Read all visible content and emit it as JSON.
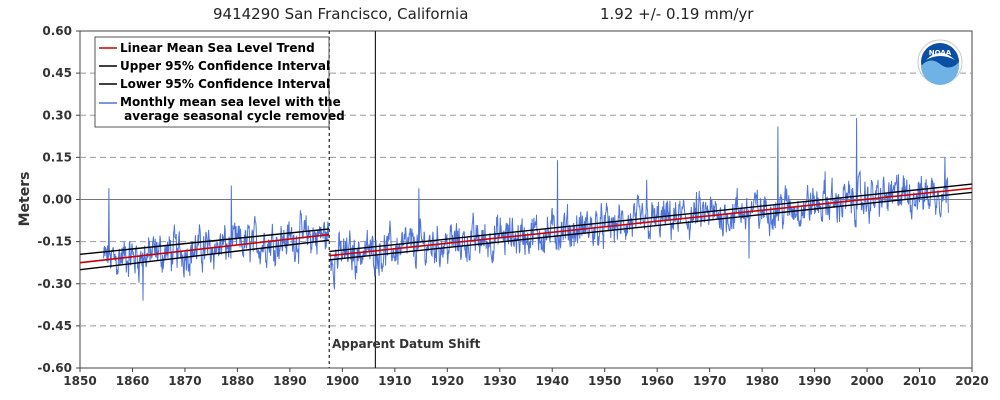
{
  "chart_data": {
    "type": "line",
    "title": "9414290 San Francisco, California",
    "trend_label": "1.92 +/-  0.19 mm/yr",
    "ylabel": "Meters",
    "xlabel": "",
    "xlim": [
      1850,
      2020
    ],
    "ylim": [
      -0.6,
      0.6
    ],
    "x_ticks": [
      "1850",
      "1860",
      "1870",
      "1880",
      "1890",
      "1900",
      "1910",
      "1920",
      "1930",
      "1940",
      "1950",
      "1960",
      "1970",
      "1980",
      "1990",
      "2000",
      "2010",
      "2020"
    ],
    "y_ticks": [
      "0.60",
      "0.45",
      "0.30",
      "0.15",
      "0.00",
      "-0.15",
      "-0.30",
      "-0.45",
      "-0.60"
    ],
    "grid": "horizontal dashed",
    "legend_position": "top-left",
    "legend": [
      {
        "label": "Linear Mean Sea Level Trend",
        "color": "#cc0000"
      },
      {
        "label": "Upper 95% Confidence Interval",
        "color": "#000000"
      },
      {
        "label": "Lower 95% Confidence Interval",
        "color": "#000000"
      },
      {
        "label": "Monthly mean sea level with the",
        "label2": " average seasonal cycle removed",
        "color": "#4f74d9"
      }
    ],
    "annotation": "Apparent Datum Shift",
    "datum_shift_year": 1897.5,
    "solid_marker_year": 1906.3,
    "monthly_series_extent": [
      1854.5,
      2015.5
    ],
    "series": [
      {
        "name": "Linear Mean Sea Level Trend",
        "color": "#cc0000",
        "segments": [
          {
            "x": [
              1850,
              1897.5
            ],
            "y": [
              -0.225,
              -0.125
            ]
          },
          {
            "x": [
              1897.5,
              2020
            ],
            "y": [
              -0.2,
              0.04
            ]
          }
        ]
      },
      {
        "name": "Upper 95% Confidence Interval",
        "color": "#000000",
        "segments": [
          {
            "x": [
              1850,
              1897.5
            ],
            "y": [
              -0.195,
              -0.105
            ]
          },
          {
            "x": [
              1897.5,
              2020
            ],
            "y": [
              -0.185,
              0.055
            ]
          }
        ]
      },
      {
        "name": "Lower 95% Confidence Interval",
        "color": "#000000",
        "segments": [
          {
            "x": [
              1850,
              1897.5
            ],
            "y": [
              -0.25,
              -0.145
            ]
          },
          {
            "x": [
              1897.5,
              2020
            ],
            "y": [
              -0.215,
              0.025
            ]
          }
        ]
      }
    ],
    "monthly_peaks": [
      {
        "x": 1855.5,
        "y": 0.04
      },
      {
        "x": 1862.0,
        "y": -0.36
      },
      {
        "x": 1878.8,
        "y": 0.05
      },
      {
        "x": 1898.5,
        "y": -0.32
      },
      {
        "x": 1914.6,
        "y": 0.04
      },
      {
        "x": 1941.0,
        "y": 0.14
      },
      {
        "x": 1958.0,
        "y": 0.07
      },
      {
        "x": 1977.5,
        "y": -0.21
      },
      {
        "x": 1983.0,
        "y": 0.26
      },
      {
        "x": 1992.0,
        "y": 0.1
      },
      {
        "x": 1998.0,
        "y": 0.29
      },
      {
        "x": 2006.0,
        "y": 0.09
      },
      {
        "x": 2014.8,
        "y": 0.15
      }
    ]
  },
  "logo": {
    "text": "NOAA",
    "outer_color": "#ffffff",
    "blue": "#0a4fa3",
    "light_blue": "#6fb3e6"
  }
}
